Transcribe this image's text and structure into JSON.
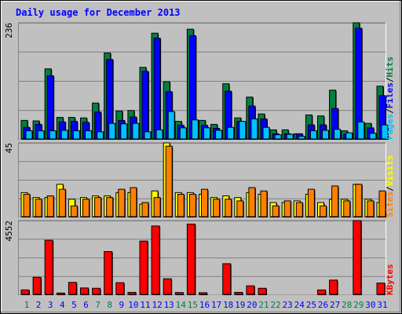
{
  "chart_data": {
    "type": "bar",
    "title": "Daily usage for December 2013",
    "categories": [
      "1",
      "2",
      "3",
      "4",
      "5",
      "6",
      "7",
      "8",
      "9",
      "10",
      "11",
      "12",
      "13",
      "14",
      "15",
      "16",
      "17",
      "18",
      "19",
      "20",
      "21",
      "22",
      "23",
      "24",
      "25",
      "26",
      "27",
      "28",
      "29",
      "30",
      "31"
    ],
    "weekend_days": [
      "1",
      "7",
      "8",
      "14",
      "15",
      "21",
      "22",
      "28",
      "29"
    ],
    "panels": [
      {
        "id": "hits_files_pages",
        "ymax": 236,
        "ytick_label": "236",
        "side_label": [
          "Pages",
          "/",
          "Files",
          "/",
          "Hits"
        ],
        "series": [
          {
            "name": "Hits",
            "color": "#008040",
            "values": [
              39,
              38,
              143,
              45,
              45,
              44,
              74,
              175,
              58,
              59,
              146,
              215,
              117,
              37,
              223,
              39,
              31,
              113,
              44,
              86,
              52,
              20,
              20,
              12,
              50,
              48,
              100,
              18,
              236,
              33,
              108
            ]
          },
          {
            "name": "Files",
            "color": "#0000ff",
            "values": [
              25,
              31,
              129,
              36,
              37,
              35,
              56,
              162,
              39,
              46,
              138,
              205,
              97,
              29,
              210,
              29,
              23,
              98,
              37,
              68,
              42,
              12,
              12,
              12,
              30,
              30,
              63,
              11,
              225,
              24,
              89
            ]
          },
          {
            "name": "Pages",
            "color": "#00c0ff",
            "values": [
              18,
              18,
              18,
              19,
              18,
              18,
              16,
              33,
              32,
              33,
              16,
              20,
              57,
              24,
              40,
              24,
              19,
              25,
              37,
              42,
              25,
              10,
              11,
              7,
              18,
              19,
              21,
              14,
              36,
              13,
              30
            ]
          }
        ]
      },
      {
        "id": "visits_sites",
        "ymax": 45,
        "ytick_label": "45",
        "side_label": [
          "Sites",
          "/",
          "Visits"
        ],
        "series": [
          {
            "name": "Visits",
            "color": "#ffff00",
            "values": [
              15,
              12,
              12,
              20,
              11,
              12,
              13,
              13,
              15,
              15,
              8,
              16,
              45,
              15,
              15,
              14,
              12,
              13,
              12,
              15,
              14,
              9,
              9,
              10,
              14,
              9,
              11,
              11,
              20,
              11,
              9
            ]
          },
          {
            "name": "Sites",
            "color": "#ff8000",
            "values": [
              14,
              11,
              13,
              17,
              7,
              11,
              12,
              12,
              17,
              18,
              9,
              12,
              43,
              14,
              14,
              17,
              11,
              11,
              10,
              18,
              16,
              7,
              10,
              9,
              17,
              7,
              19,
              10,
              20,
              10,
              16
            ]
          }
        ]
      },
      {
        "id": "kbytes",
        "ymax": 4552,
        "ytick_label": "4552",
        "side_label": [
          "KBytes"
        ],
        "series": [
          {
            "name": "KBytes",
            "color": "#ff0000",
            "values": [
              320,
              1090,
              3350,
              130,
              780,
              440,
              420,
              2660,
              760,
              170,
              3300,
              4220,
              1000,
              160,
              4340,
              150,
              40,
              1920,
              170,
              570,
              420,
              40,
              40,
              40,
              30,
              320,
              920,
              40,
              4552,
              20,
              740
            ]
          }
        ]
      }
    ]
  },
  "colors": {
    "background": "#c0c0c0",
    "title": "#0000ff",
    "weekend_label": "#008040",
    "weekday_label": "#0000ff",
    "gridline": "#808080",
    "axis_label": "#000000"
  }
}
